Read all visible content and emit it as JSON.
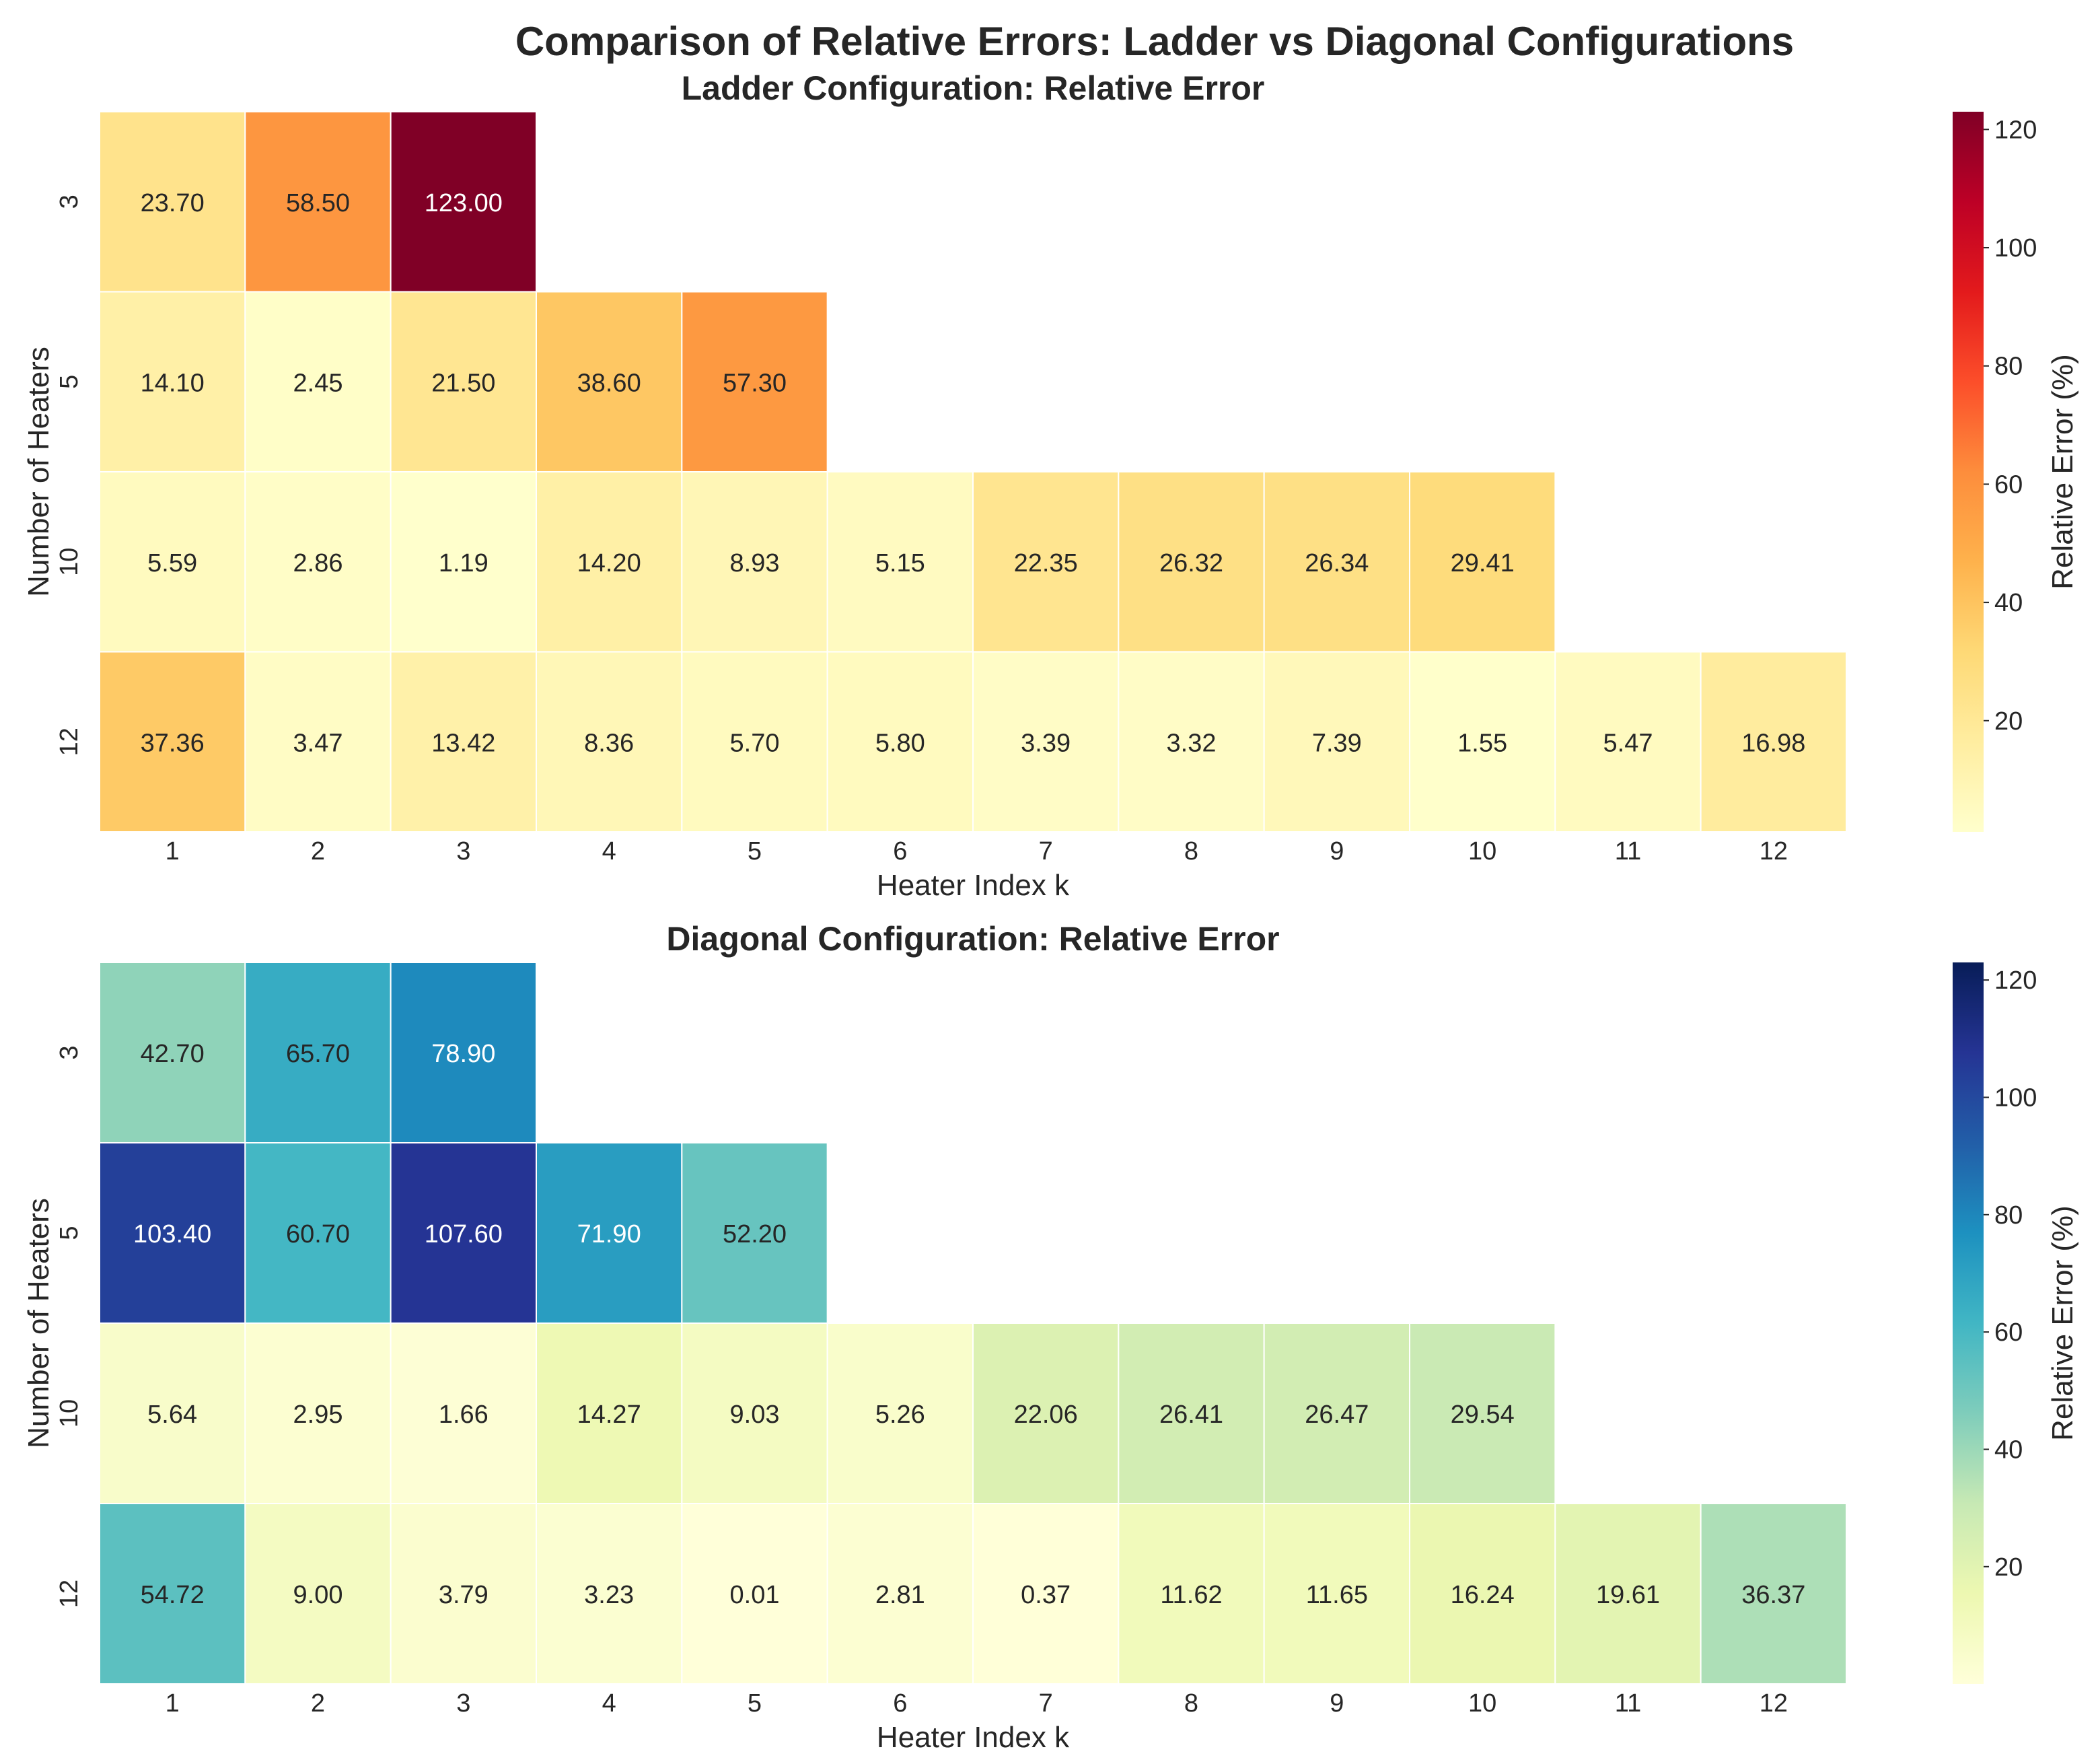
{
  "suptitle": "Comparison of Relative Errors: Ladder vs Diagonal Configurations",
  "chart_data": [
    {
      "type": "heatmap",
      "title": "Ladder Configuration: Relative Error",
      "xlabel": "Heater Index k",
      "ylabel": "Number of Heaters",
      "x": [
        1,
        2,
        3,
        4,
        5,
        6,
        7,
        8,
        9,
        10,
        11,
        12
      ],
      "y": [
        3,
        5,
        10,
        12
      ],
      "values": [
        [
          23.7,
          58.5,
          123.0,
          null,
          null,
          null,
          null,
          null,
          null,
          null,
          null,
          null
        ],
        [
          14.1,
          2.45,
          21.5,
          38.6,
          57.3,
          null,
          null,
          null,
          null,
          null,
          null,
          null
        ],
        [
          5.59,
          2.86,
          1.19,
          14.2,
          8.93,
          5.15,
          22.35,
          26.32,
          26.34,
          29.41,
          null,
          null
        ],
        [
          37.36,
          3.47,
          13.42,
          8.36,
          5.7,
          5.8,
          3.39,
          3.32,
          7.39,
          1.55,
          5.47,
          16.98
        ]
      ],
      "value_format": "2 decimals",
      "colormap": "YlOrRd",
      "colormap_stops": [
        "#ffffcc",
        "#ffeda0",
        "#fed976",
        "#feb24c",
        "#fd8d3c",
        "#fc4e2a",
        "#e31a1c",
        "#bd0026",
        "#800026"
      ],
      "vmin": 1.19,
      "vmax": 123.0,
      "colorbar_label": "Relative Error (%)",
      "colorbar_ticks": [
        20,
        40,
        60,
        80,
        100,
        120
      ]
    },
    {
      "type": "heatmap",
      "title": "Diagonal Configuration: Relative Error",
      "xlabel": "Heater Index k",
      "ylabel": "Number of Heaters",
      "x": [
        1,
        2,
        3,
        4,
        5,
        6,
        7,
        8,
        9,
        10,
        11,
        12
      ],
      "y": [
        3,
        5,
        10,
        12
      ],
      "values": [
        [
          42.7,
          65.7,
          78.9,
          null,
          null,
          null,
          null,
          null,
          null,
          null,
          null,
          null
        ],
        [
          103.4,
          60.7,
          107.6,
          71.9,
          52.2,
          null,
          null,
          null,
          null,
          null,
          null,
          null
        ],
        [
          5.64,
          2.95,
          1.66,
          14.27,
          9.03,
          5.26,
          22.06,
          26.41,
          26.47,
          29.54,
          null,
          null
        ],
        [
          54.72,
          9.0,
          3.79,
          3.23,
          0.01,
          2.81,
          0.37,
          11.62,
          11.65,
          16.24,
          19.61,
          36.37
        ]
      ],
      "value_format": "2 decimals",
      "colormap": "YlGnBu",
      "colormap_stops": [
        "#ffffd9",
        "#edf8b1",
        "#c7e9b4",
        "#7fcdbb",
        "#41b6c4",
        "#1d91c0",
        "#225ea8",
        "#253494",
        "#081d58"
      ],
      "vmin": 0.01,
      "vmax": 123.0,
      "colorbar_label": "Relative Error (%)",
      "colorbar_ticks": [
        20,
        40,
        60,
        80,
        100,
        120
      ]
    }
  ]
}
